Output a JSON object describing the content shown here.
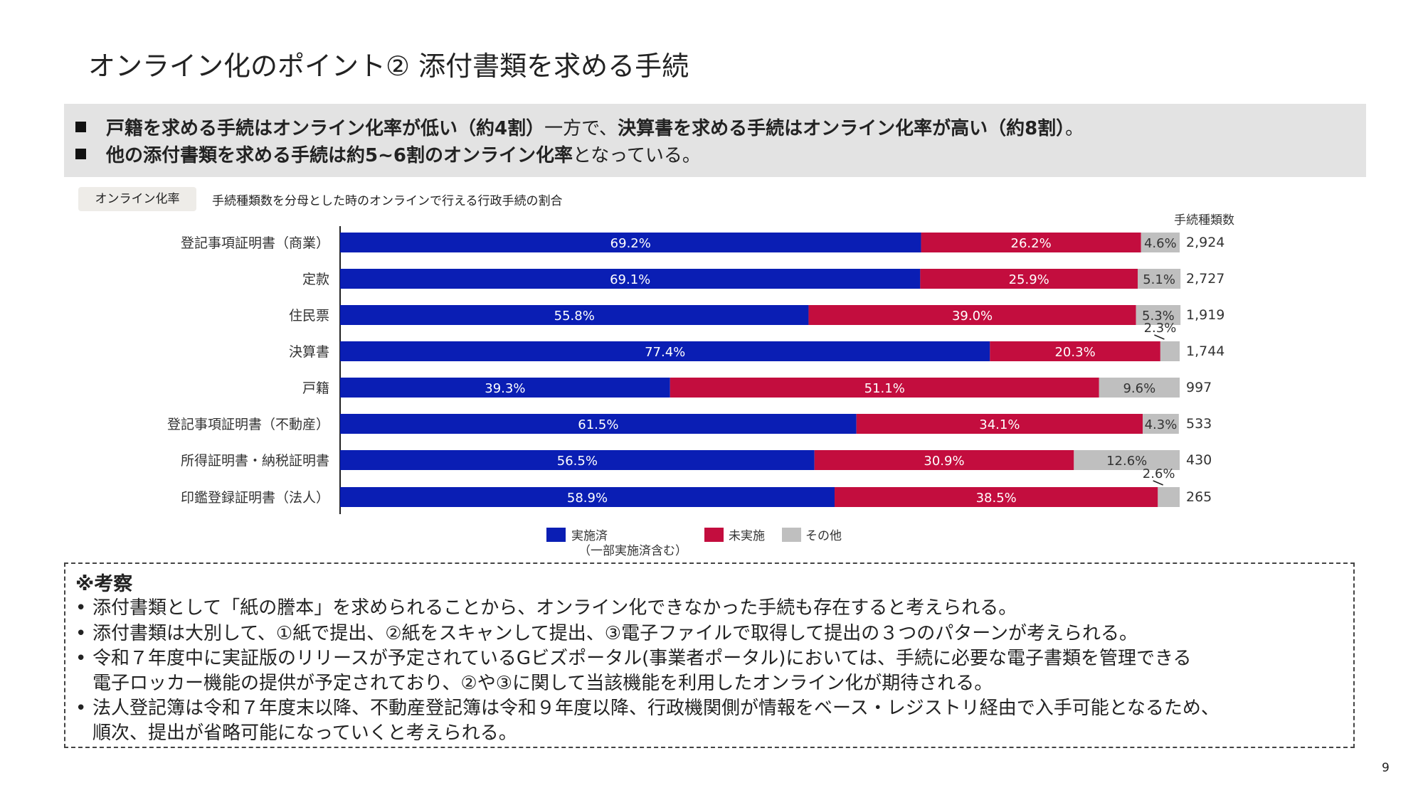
{
  "title": "オンライン化のポイント② 添付書類を求める手続",
  "summary": [
    [
      {
        "t": "戸籍を求める手続はオンライン化率が低い（約4割）",
        "b": true
      },
      {
        "t": "一方で、",
        "b": false
      },
      {
        "t": "決算書を求める手続はオンライン化率が高い（約8割）",
        "b": true
      },
      {
        "t": "。",
        "b": false
      }
    ],
    [
      {
        "t": "他の添付書類を求める手続は約5~6割のオンライン化率",
        "b": true
      },
      {
        "t": "となっている。",
        "b": false
      }
    ]
  ],
  "tag": {
    "label": "オンライン化率",
    "description": "手続種類数を分母とした時のオンラインで行える行政手続の割合"
  },
  "chart_data": {
    "type": "bar",
    "orientation": "horizontal",
    "stacked": true,
    "count_header": "手続種類数",
    "categories": [
      "登記事項証明書（商業）",
      "定款",
      "住民票",
      "決算書",
      "戸籍",
      "登記事項証明書（不動産）",
      "所得証明書・納税証明書",
      "印鑑登録証明書（法人）"
    ],
    "counts": [
      "2,924",
      "2,727",
      "1,919",
      "1,744",
      "997",
      "533",
      "430",
      "265"
    ],
    "series": [
      {
        "name": "実施済",
        "name_sub": "（一部実施済含む）",
        "color": "#0a1eb4",
        "values": [
          69.2,
          69.1,
          55.8,
          77.4,
          39.3,
          61.5,
          56.5,
          58.9
        ]
      },
      {
        "name": "未実施",
        "color": "#c30d3e",
        "values": [
          26.2,
          25.9,
          39.0,
          20.3,
          51.1,
          34.1,
          30.9,
          38.5
        ]
      },
      {
        "name": "その他",
        "color": "#bfbfbf",
        "values": [
          4.6,
          5.1,
          5.3,
          2.3,
          9.6,
          4.3,
          12.6,
          2.6
        ]
      }
    ],
    "xlim": [
      0,
      100
    ],
    "legend": "bottom",
    "grid": false
  },
  "notes": {
    "title": "※考察",
    "items": [
      [
        "添付書類として「紙の謄本」を求められることから、オンライン化できなかった手続も存在すると考えられる。"
      ],
      [
        "添付書類は大別して、①紙で提出、②紙をスキャンして提出、③電子ファイルで取得して提出の３つのパターンが考えられる。"
      ],
      [
        "令和７年度中に実証版のリリースが予定されているGビズポータル(事業者ポータル)においては、手続に必要な電子書類を管理できる",
        "電子ロッカー機能の提供が予定されており、②や③に関して当該機能を利用したオンライン化が期待される。"
      ],
      [
        "法人登記簿は令和７年度末以降、不動産登記簿は令和９年度以降、行政機関側が情報をベース・レジストリ経由で入手可能となるため、",
        "順次、提出が省略可能になっていくと考えられる。"
      ]
    ]
  },
  "page_number": "9"
}
